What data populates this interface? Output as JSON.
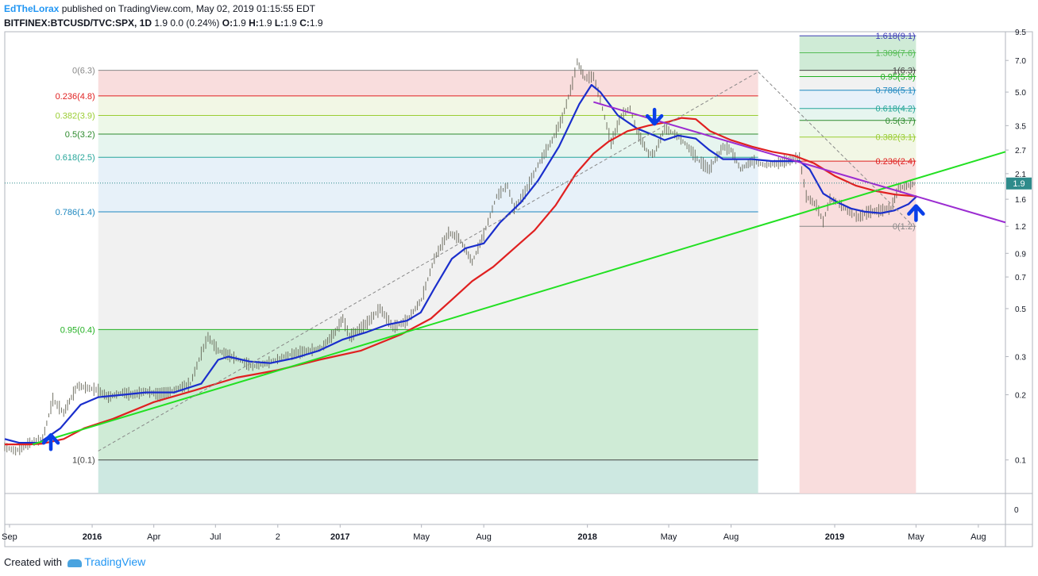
{
  "header": {
    "user": "EdTheLorax",
    "published_text": "published on TradingView.com, May 02, 2019 01:15:55 EDT",
    "symbol": "BITFINEX:BTCUSD/TVC:SPX, 1D",
    "change": "1.9 0.0 (0.24%)",
    "ohlc": {
      "o_label": "O:",
      "o": "1.9",
      "h_label": "H:",
      "h": "1.9",
      "l_label": "L:",
      "l": "1.9",
      "c_label": "C:",
      "c": "1.9"
    }
  },
  "footer": {
    "created_with": "Created with",
    "brand": "TradingView"
  },
  "chart_data": {
    "type": "line",
    "y_scale": "log",
    "ylim": [
      0.07,
      9.5
    ],
    "x_range": [
      "2015-08-25",
      "2019-09-10"
    ],
    "x_tick_labels": [
      {
        "label": "Sep",
        "date": "2015-09-01",
        "bold": false
      },
      {
        "label": "2016",
        "date": "2016-01-01",
        "bold": true
      },
      {
        "label": "Apr",
        "date": "2016-04-01",
        "bold": false
      },
      {
        "label": "Jul",
        "date": "2016-07-01",
        "bold": false
      },
      {
        "label": "2",
        "date": "2016-10-01",
        "bold": false
      },
      {
        "label": "2017",
        "date": "2017-01-01",
        "bold": true
      },
      {
        "label": "May",
        "date": "2017-05-01",
        "bold": false
      },
      {
        "label": "Aug",
        "date": "2017-08-01",
        "bold": false
      },
      {
        "label": "2018",
        "date": "2018-01-01",
        "bold": true
      },
      {
        "label": "May",
        "date": "2018-05-01",
        "bold": false
      },
      {
        "label": "Aug",
        "date": "2018-08-01",
        "bold": false
      },
      {
        "label": "2019",
        "date": "2019-01-01",
        "bold": true
      },
      {
        "label": "May",
        "date": "2019-05-01",
        "bold": false
      },
      {
        "label": "Aug",
        "date": "2019-08-01",
        "bold": false
      }
    ],
    "y_tick_labels": [
      "9.5",
      "7.0",
      "5.0",
      "3.5",
      "2.7",
      "2.1",
      "1.6",
      "1.2",
      "0.9",
      "0.7",
      "0.5",
      "0.3",
      "0.2",
      "0.1"
    ],
    "y_tick_values": [
      9.5,
      7.0,
      5.0,
      3.5,
      2.7,
      2.1,
      1.6,
      1.2,
      0.9,
      0.7,
      0.5,
      0.3,
      0.2,
      0.1
    ],
    "last_price": {
      "value": 1.9,
      "label": "1.9",
      "color": "#2e8b8b"
    },
    "indicator_pane": {
      "tick_label": "0"
    },
    "series": [
      {
        "type": "ohlc_bars",
        "color": "#5d5d4d",
        "points": [
          [
            "2015-08-25",
            0.115
          ],
          [
            "2015-09-10",
            0.11
          ],
          [
            "2015-10-01",
            0.12
          ],
          [
            "2015-10-20",
            0.125
          ],
          [
            "2015-11-04",
            0.19
          ],
          [
            "2015-11-20",
            0.165
          ],
          [
            "2015-12-10",
            0.22
          ],
          [
            "2015-12-25",
            0.215
          ],
          [
            "2016-01-10",
            0.21
          ],
          [
            "2016-01-25",
            0.195
          ],
          [
            "2016-02-15",
            0.205
          ],
          [
            "2016-03-01",
            0.2
          ],
          [
            "2016-03-20",
            0.208
          ],
          [
            "2016-04-10",
            0.2
          ],
          [
            "2016-05-01",
            0.21
          ],
          [
            "2016-05-25",
            0.225
          ],
          [
            "2016-06-10",
            0.31
          ],
          [
            "2016-06-20",
            0.37
          ],
          [
            "2016-07-05",
            0.32
          ],
          [
            "2016-07-25",
            0.3
          ],
          [
            "2016-08-10",
            0.285
          ],
          [
            "2016-08-25",
            0.27
          ],
          [
            "2016-09-15",
            0.28
          ],
          [
            "2016-10-10",
            0.3
          ],
          [
            "2016-10-25",
            0.31
          ],
          [
            "2016-11-15",
            0.32
          ],
          [
            "2016-12-05",
            0.33
          ],
          [
            "2016-12-25",
            0.39
          ],
          [
            "2017-01-05",
            0.45
          ],
          [
            "2017-01-15",
            0.37
          ],
          [
            "2017-02-10",
            0.43
          ],
          [
            "2017-03-01",
            0.5
          ],
          [
            "2017-03-20",
            0.41
          ],
          [
            "2017-04-10",
            0.44
          ],
          [
            "2017-05-01",
            0.55
          ],
          [
            "2017-05-20",
            0.85
          ],
          [
            "2017-06-10",
            1.12
          ],
          [
            "2017-06-25",
            1.06
          ],
          [
            "2017-07-15",
            0.82
          ],
          [
            "2017-08-01",
            1.1
          ],
          [
            "2017-08-20",
            1.65
          ],
          [
            "2017-09-05",
            1.85
          ],
          [
            "2017-09-15",
            1.45
          ],
          [
            "2017-10-01",
            1.72
          ],
          [
            "2017-10-20",
            2.3
          ],
          [
            "2017-11-10",
            3.0
          ],
          [
            "2017-11-25",
            3.8
          ],
          [
            "2017-12-10",
            5.5
          ],
          [
            "2017-12-17",
            6.9
          ],
          [
            "2017-12-28",
            5.8
          ],
          [
            "2018-01-10",
            5.9
          ],
          [
            "2018-01-20",
            4.6
          ],
          [
            "2018-02-05",
            2.9
          ],
          [
            "2018-02-20",
            3.9
          ],
          [
            "2018-03-05",
            4.2
          ],
          [
            "2018-03-15",
            3.3
          ],
          [
            "2018-04-01",
            2.6
          ],
          [
            "2018-04-10",
            2.6
          ],
          [
            "2018-04-25",
            3.4
          ],
          [
            "2018-05-10",
            3.2
          ],
          [
            "2018-05-25",
            2.9
          ],
          [
            "2018-06-15",
            2.4
          ],
          [
            "2018-06-30",
            2.2
          ],
          [
            "2018-07-20",
            2.8
          ],
          [
            "2018-08-01",
            2.7
          ],
          [
            "2018-08-15",
            2.2
          ],
          [
            "2018-09-01",
            2.4
          ],
          [
            "2018-09-20",
            2.3
          ],
          [
            "2018-10-10",
            2.35
          ],
          [
            "2018-10-30",
            2.45
          ],
          [
            "2018-11-10",
            2.5
          ],
          [
            "2018-11-20",
            1.65
          ],
          [
            "2018-12-05",
            1.5
          ],
          [
            "2018-12-15",
            1.26
          ],
          [
            "2018-12-25",
            1.6
          ],
          [
            "2019-01-05",
            1.55
          ],
          [
            "2019-01-20",
            1.42
          ],
          [
            "2019-02-05",
            1.32
          ],
          [
            "2019-02-20",
            1.4
          ],
          [
            "2019-03-10",
            1.42
          ],
          [
            "2019-03-25",
            1.45
          ],
          [
            "2019-04-05",
            1.8
          ],
          [
            "2019-04-20",
            1.85
          ],
          [
            "2019-05-01",
            1.9
          ]
        ]
      },
      {
        "type": "line",
        "color": "#1a2ecc",
        "points": [
          [
            "2015-08-25",
            0.125
          ],
          [
            "2015-09-15",
            0.12
          ],
          [
            "2015-10-15",
            0.12
          ],
          [
            "2015-11-15",
            0.14
          ],
          [
            "2015-12-15",
            0.18
          ],
          [
            "2016-01-10",
            0.195
          ],
          [
            "2016-02-15",
            0.2
          ],
          [
            "2016-03-20",
            0.205
          ],
          [
            "2016-05-01",
            0.205
          ],
          [
            "2016-06-10",
            0.225
          ],
          [
            "2016-07-05",
            0.29
          ],
          [
            "2016-07-20",
            0.3
          ],
          [
            "2016-08-20",
            0.285
          ],
          [
            "2016-09-20",
            0.28
          ],
          [
            "2016-10-25",
            0.295
          ],
          [
            "2016-12-01",
            0.32
          ],
          [
            "2017-01-05",
            0.36
          ],
          [
            "2017-02-10",
            0.39
          ],
          [
            "2017-03-10",
            0.42
          ],
          [
            "2017-04-10",
            0.44
          ],
          [
            "2017-04-30",
            0.48
          ],
          [
            "2017-05-20",
            0.62
          ],
          [
            "2017-06-15",
            0.85
          ],
          [
            "2017-07-05",
            0.95
          ],
          [
            "2017-08-01",
            1.0
          ],
          [
            "2017-08-25",
            1.25
          ],
          [
            "2017-09-25",
            1.55
          ],
          [
            "2017-10-20",
            1.95
          ],
          [
            "2017-11-20",
            2.8
          ],
          [
            "2017-12-20",
            4.4
          ],
          [
            "2018-01-07",
            5.4
          ],
          [
            "2018-01-20",
            5.0
          ],
          [
            "2018-02-15",
            3.9
          ],
          [
            "2018-03-15",
            3.4
          ],
          [
            "2018-04-10",
            3.15
          ],
          [
            "2018-04-25",
            3.0
          ],
          [
            "2018-05-15",
            3.15
          ],
          [
            "2018-06-10",
            3.05
          ],
          [
            "2018-06-30",
            2.7
          ],
          [
            "2018-07-20",
            2.45
          ],
          [
            "2018-08-10",
            2.45
          ],
          [
            "2018-09-01",
            2.45
          ],
          [
            "2018-10-01",
            2.4
          ],
          [
            "2018-11-10",
            2.4
          ],
          [
            "2018-11-25",
            2.2
          ],
          [
            "2018-12-15",
            1.7
          ],
          [
            "2019-01-05",
            1.55
          ],
          [
            "2019-01-25",
            1.45
          ],
          [
            "2019-02-15",
            1.4
          ],
          [
            "2019-03-10",
            1.38
          ],
          [
            "2019-03-30",
            1.42
          ],
          [
            "2019-04-20",
            1.52
          ],
          [
            "2019-05-02",
            1.65
          ]
        ]
      },
      {
        "type": "line",
        "color": "#e02020",
        "points": [
          [
            "2015-08-25",
            0.118
          ],
          [
            "2015-10-01",
            0.118
          ],
          [
            "2015-10-20",
            0.119
          ],
          [
            "2015-11-20",
            0.125
          ],
          [
            "2015-12-20",
            0.14
          ],
          [
            "2016-02-01",
            0.155
          ],
          [
            "2016-04-01",
            0.185
          ],
          [
            "2016-06-01",
            0.21
          ],
          [
            "2016-08-01",
            0.24
          ],
          [
            "2016-10-01",
            0.26
          ],
          [
            "2016-12-01",
            0.29
          ],
          [
            "2017-02-01",
            0.32
          ],
          [
            "2017-04-01",
            0.38
          ],
          [
            "2017-05-15",
            0.45
          ],
          [
            "2017-06-15",
            0.55
          ],
          [
            "2017-07-15",
            0.67
          ],
          [
            "2017-08-15",
            0.78
          ],
          [
            "2017-09-15",
            0.95
          ],
          [
            "2017-10-15",
            1.15
          ],
          [
            "2017-11-15",
            1.5
          ],
          [
            "2017-12-15",
            2.1
          ],
          [
            "2018-01-10",
            2.6
          ],
          [
            "2018-02-01",
            2.95
          ],
          [
            "2018-03-01",
            3.3
          ],
          [
            "2018-04-01",
            3.5
          ],
          [
            "2018-05-01",
            3.65
          ],
          [
            "2018-05-20",
            3.8
          ],
          [
            "2018-06-10",
            3.75
          ],
          [
            "2018-07-01",
            3.3
          ],
          [
            "2018-08-01",
            3.0
          ],
          [
            "2018-09-01",
            2.8
          ],
          [
            "2018-10-01",
            2.65
          ],
          [
            "2018-11-01",
            2.55
          ],
          [
            "2018-12-01",
            2.35
          ],
          [
            "2019-01-01",
            2.05
          ],
          [
            "2019-02-01",
            1.85
          ],
          [
            "2019-03-01",
            1.75
          ],
          [
            "2019-04-01",
            1.68
          ],
          [
            "2019-05-02",
            1.65
          ]
        ]
      }
    ],
    "trendlines": [
      {
        "color": "#22e022",
        "from": [
          "2015-10-05",
          0.118
        ],
        "to": [
          "2019-09-10",
          2.65
        ]
      },
      {
        "color": "#9b2cd1",
        "from": [
          "2018-01-10",
          4.5
        ],
        "to": [
          "2019-09-10",
          1.25
        ]
      },
      {
        "color": "#888888",
        "dashed": true,
        "from": [
          "2016-01-10",
          0.11
        ],
        "to": [
          "2018-09-10",
          6.2
        ]
      },
      {
        "color": "#888888",
        "dashed": true,
        "from": [
          "2018-09-10",
          6.2
        ],
        "to": [
          "2019-04-25",
          1.22
        ]
      }
    ],
    "fib_retracement_1": {
      "x_from": "2016-01-10",
      "x_to": "2018-09-10",
      "levels": [
        {
          "label": "0(6.3)",
          "value": 6.3,
          "color": "#888888",
          "fill": "#f8d7d7"
        },
        {
          "label": "0.236(4.8)",
          "value": 4.8,
          "color": "#e02020",
          "fill": "#f0f6e0"
        },
        {
          "label": "0.382(3.9)",
          "value": 3.9,
          "color": "#9acd32",
          "fill": "#eaf7e4"
        },
        {
          "label": "0.5(3.2)",
          "value": 3.2,
          "color": "#2e8b2e",
          "fill": "#e2f3ec"
        },
        {
          "label": "0.618(2.5)",
          "value": 2.5,
          "color": "#26a69a",
          "fill": "#e3eef8"
        },
        {
          "label": "0.786(1.4)",
          "value": 1.4,
          "color": "#1e88c0",
          "fill": "#eeeeee"
        },
        {
          "label": "0.95(0.4)",
          "value": 0.4,
          "color": "#22b022",
          "fill": "#c7e8cf"
        },
        {
          "label": "1(0.1)",
          "value": 0.1,
          "color": "#444444",
          "fill": "#c4e4dc"
        }
      ]
    },
    "fib_retracement_2": {
      "x_from": "2018-11-10",
      "x_to": "2019-05-01",
      "levels": [
        {
          "label": "1.618(9.1)",
          "value": 9.1,
          "color": "#3b3bb5",
          "fill": "#c7e8cf"
        },
        {
          "label": "1.309(7.6)",
          "value": 7.6,
          "color": "#55bb55",
          "fill": "#c7e8cf"
        },
        {
          "label": "1(6.3)",
          "value": 6.3,
          "color": "#444444",
          "fill": "#e8f2e0"
        },
        {
          "label": "0.95(5.9)",
          "value": 5.9,
          "color": "#22b022",
          "fill": "#eeeeee"
        },
        {
          "label": "0.786(5.1)",
          "value": 5.1,
          "color": "#1e88c0",
          "fill": "#e3eef8"
        },
        {
          "label": "0.618(4.2)",
          "value": 4.2,
          "color": "#26a69a",
          "fill": "#e2f3ec"
        },
        {
          "label": "0.5(3.7)",
          "value": 3.7,
          "color": "#2e8b2e",
          "fill": "#eaf7e4"
        },
        {
          "label": "0.382(3.1)",
          "value": 3.1,
          "color": "#9acd32",
          "fill": "#f0f6e0"
        },
        {
          "label": "0.236(2.4)",
          "value": 2.4,
          "color": "#e02020",
          "fill": "#f8d7d7"
        },
        {
          "label": "0(1.2)",
          "value": 1.2,
          "color": "#888888",
          "fill": "#f8d7d7"
        }
      ]
    },
    "annotations": [
      {
        "kind": "arrow-up",
        "color": "#0a3fe8",
        "at": [
          "2015-11-01",
          0.112
        ]
      },
      {
        "kind": "arrow-down",
        "color": "#0a3fe8",
        "at": [
          "2018-04-10",
          4.15
        ]
      },
      {
        "kind": "arrow-up",
        "color": "#0a3fe8",
        "at": [
          "2019-05-01",
          1.28
        ]
      }
    ]
  }
}
